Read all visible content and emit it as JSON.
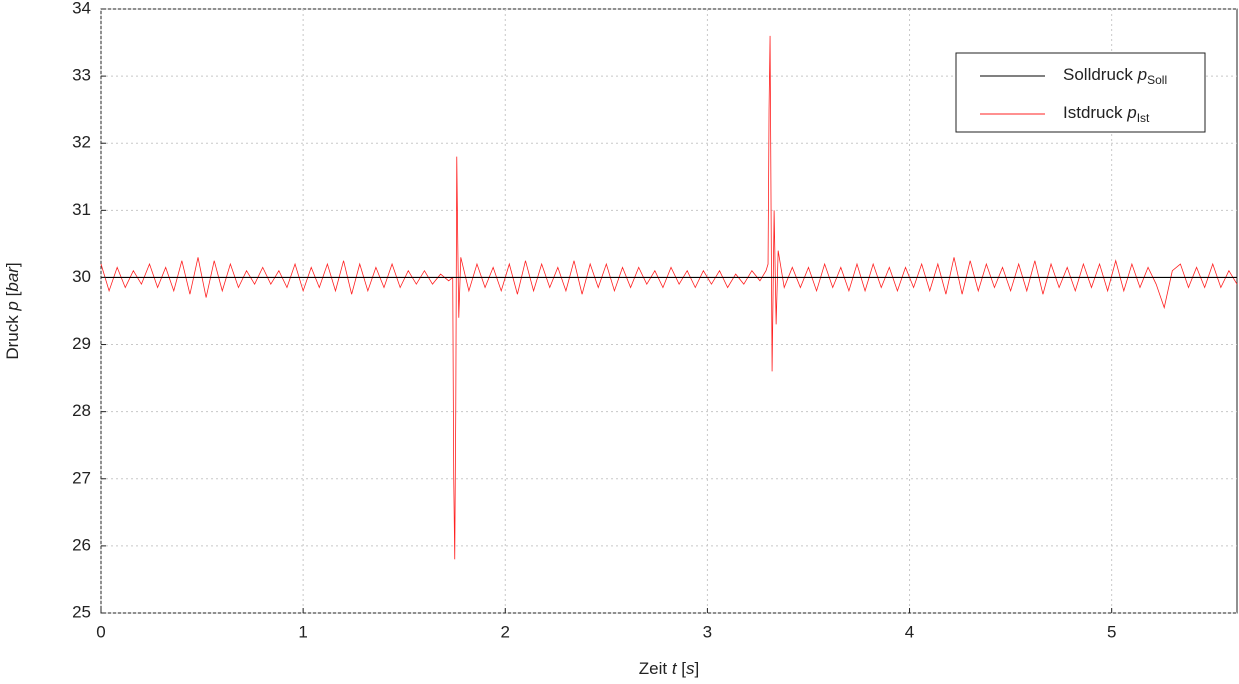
{
  "chart_data": {
    "type": "line",
    "xlabel": [
      {
        "text": "Zeit "
      },
      {
        "text": "t",
        "italic": true
      },
      {
        "text": " ["
      },
      {
        "text": "s",
        "italic": true
      },
      {
        "text": "]"
      }
    ],
    "ylabel": [
      {
        "text": "Druck "
      },
      {
        "text": "p",
        "italic": true
      },
      {
        "text": " ["
      },
      {
        "text": "bar",
        "italic": true
      },
      {
        "text": "]"
      }
    ],
    "xlim": [
      0,
      5.62
    ],
    "ylim": [
      25,
      34
    ],
    "xticks": [
      0,
      1,
      2,
      3,
      4,
      5
    ],
    "yticks": [
      25,
      26,
      27,
      28,
      29,
      30,
      31,
      32,
      33,
      34
    ],
    "grid": true,
    "legend": "upper right",
    "series": [
      {
        "name": "Solldruck ",
        "symbol": "p",
        "subscript": "Soll",
        "color": "#000000",
        "x": [
          0,
          5.62
        ],
        "values": [
          30,
          30
        ]
      },
      {
        "name": "Istdruck ",
        "symbol": "p",
        "subscript": "Ist",
        "color": "#ff2020",
        "x": [
          0,
          0.04,
          0.08,
          0.12,
          0.16,
          0.2,
          0.24,
          0.28,
          0.32,
          0.36,
          0.4,
          0.44,
          0.48,
          0.52,
          0.56,
          0.6,
          0.64,
          0.68,
          0.72,
          0.76,
          0.8,
          0.84,
          0.88,
          0.92,
          0.96,
          1,
          1.04,
          1.08,
          1.12,
          1.16,
          1.2,
          1.24,
          1.28,
          1.32,
          1.36,
          1.4,
          1.44,
          1.48,
          1.52,
          1.56,
          1.6,
          1.64,
          1.68,
          1.72,
          1.74,
          1.745,
          1.75,
          1.755,
          1.76,
          1.765,
          1.77,
          1.78,
          1.82,
          1.86,
          1.9,
          1.94,
          1.98,
          2.02,
          2.06,
          2.1,
          2.14,
          2.18,
          2.22,
          2.26,
          2.3,
          2.34,
          2.38,
          2.42,
          2.46,
          2.5,
          2.54,
          2.58,
          2.62,
          2.66,
          2.7,
          2.74,
          2.78,
          2.82,
          2.86,
          2.9,
          2.94,
          2.98,
          3.02,
          3.06,
          3.1,
          3.14,
          3.18,
          3.22,
          3.26,
          3.29,
          3.3,
          3.305,
          3.31,
          3.315,
          3.32,
          3.33,
          3.34,
          3.35,
          3.38,
          3.42,
          3.46,
          3.5,
          3.54,
          3.58,
          3.62,
          3.66,
          3.7,
          3.74,
          3.78,
          3.82,
          3.86,
          3.9,
          3.94,
          3.98,
          4.02,
          4.06,
          4.1,
          4.14,
          4.18,
          4.22,
          4.26,
          4.3,
          4.34,
          4.38,
          4.42,
          4.46,
          4.5,
          4.54,
          4.58,
          4.62,
          4.66,
          4.7,
          4.74,
          4.78,
          4.82,
          4.86,
          4.9,
          4.94,
          4.98,
          5.02,
          5.06,
          5.1,
          5.14,
          5.18,
          5.22,
          5.26,
          5.3,
          5.34,
          5.38,
          5.42,
          5.46,
          5.5,
          5.54,
          5.58,
          5.62
        ],
        "values": [
          30.2,
          29.8,
          30.15,
          29.85,
          30.1,
          29.9,
          30.2,
          29.85,
          30.15,
          29.8,
          30.25,
          29.75,
          30.3,
          29.7,
          30.25,
          29.8,
          30.2,
          29.85,
          30.1,
          29.9,
          30.15,
          29.9,
          30.1,
          29.85,
          30.2,
          29.8,
          30.15,
          29.85,
          30.2,
          29.8,
          30.25,
          29.75,
          30.2,
          29.8,
          30.15,
          29.85,
          30.2,
          29.85,
          30.1,
          29.9,
          30.1,
          29.9,
          30.05,
          29.95,
          30.0,
          27.0,
          25.8,
          28.0,
          31.8,
          30.5,
          29.4,
          30.3,
          29.8,
          30.2,
          29.85,
          30.15,
          29.8,
          30.2,
          29.75,
          30.25,
          29.8,
          30.2,
          29.85,
          30.15,
          29.8,
          30.25,
          29.75,
          30.2,
          29.85,
          30.2,
          29.8,
          30.15,
          29.85,
          30.15,
          29.9,
          30.1,
          29.85,
          30.15,
          29.9,
          30.1,
          29.85,
          30.1,
          29.9,
          30.1,
          29.85,
          30.05,
          29.9,
          30.1,
          29.95,
          30.1,
          30.2,
          32.5,
          33.6,
          31.0,
          28.6,
          31.0,
          29.3,
          30.4,
          29.85,
          30.15,
          29.85,
          30.15,
          29.8,
          30.2,
          29.85,
          30.15,
          29.8,
          30.2,
          29.8,
          30.2,
          29.85,
          30.15,
          29.8,
          30.15,
          29.85,
          30.2,
          29.8,
          30.2,
          29.75,
          30.3,
          29.75,
          30.25,
          29.8,
          30.2,
          29.85,
          30.15,
          29.8,
          30.2,
          29.8,
          30.25,
          29.75,
          30.2,
          29.85,
          30.15,
          29.8,
          30.2,
          29.85,
          30.2,
          29.8,
          30.25,
          29.8,
          30.2,
          29.85,
          30.15,
          29.9,
          29.55,
          30.1,
          30.2,
          29.85,
          30.15,
          29.85,
          30.2,
          29.85,
          30.1,
          29.9
        ]
      }
    ]
  }
}
